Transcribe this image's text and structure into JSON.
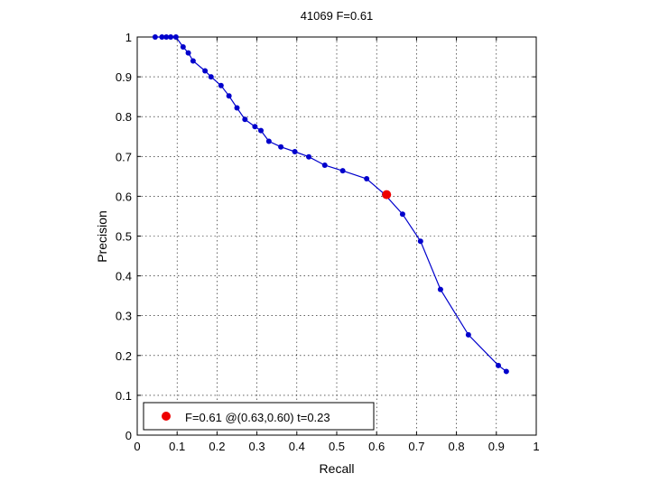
{
  "chart_data": {
    "type": "line",
    "title": "41069 F=0.61",
    "xlabel": "Recall",
    "ylabel": "Precision",
    "xlim": [
      0,
      1
    ],
    "ylim": [
      0,
      1
    ],
    "x_ticks": [
      "0",
      "0.1",
      "0.2",
      "0.3",
      "0.4",
      "0.5",
      "0.6",
      "0.7",
      "0.8",
      "0.9",
      "1"
    ],
    "y_ticks": [
      "0",
      "0.1",
      "0.2",
      "0.3",
      "0.4",
      "0.5",
      "0.6",
      "0.7",
      "0.8",
      "0.9",
      "1"
    ],
    "grid": true,
    "series": [
      {
        "color": "#0000cc",
        "points": [
          [
            0.045,
            1.0
          ],
          [
            0.062,
            1.0
          ],
          [
            0.073,
            1.0
          ],
          [
            0.084,
            1.0
          ],
          [
            0.097,
            1.0
          ],
          [
            0.115,
            0.975
          ],
          [
            0.128,
            0.96
          ],
          [
            0.14,
            0.94
          ],
          [
            0.17,
            0.915
          ],
          [
            0.185,
            0.9
          ],
          [
            0.21,
            0.878
          ],
          [
            0.23,
            0.852
          ],
          [
            0.25,
            0.822
          ],
          [
            0.27,
            0.793
          ],
          [
            0.295,
            0.775
          ],
          [
            0.31,
            0.765
          ],
          [
            0.33,
            0.738
          ],
          [
            0.36,
            0.724
          ],
          [
            0.395,
            0.712
          ],
          [
            0.43,
            0.699
          ],
          [
            0.47,
            0.678
          ],
          [
            0.515,
            0.664
          ],
          [
            0.575,
            0.644
          ],
          [
            0.62,
            0.605
          ],
          [
            0.665,
            0.555
          ],
          [
            0.71,
            0.487
          ],
          [
            0.76,
            0.366
          ],
          [
            0.83,
            0.252
          ],
          [
            0.905,
            0.175
          ],
          [
            0.925,
            0.16
          ]
        ]
      }
    ],
    "highlight": {
      "x": 0.625,
      "y": 0.604,
      "color": "#ee0000"
    },
    "legend": {
      "position": "bottom-left",
      "entries": [
        {
          "label": "F=0.61 @(0.63,0.60) t=0.23",
          "color": "#ee0000"
        }
      ]
    }
  }
}
